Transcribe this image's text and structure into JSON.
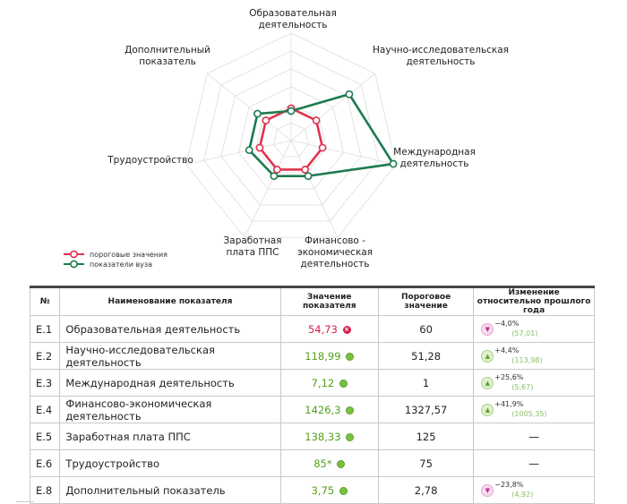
{
  "chart_data": {
    "type": "radar",
    "axes": [
      "Образовательная деятельность",
      "Научно-исследовательская деятельность",
      "Международная деятельность",
      "Финансово-экономическая деятельность",
      "Заработная плата ППС",
      "Трудоустройство",
      "Дополнительный показатель"
    ],
    "axis_labels": [
      [
        "Образовательная",
        "деятельность"
      ],
      [
        "Научно-исследовательская",
        "деятельность"
      ],
      [
        "Международная",
        "деятельность"
      ],
      [
        "Финансово -",
        "экономическая",
        "деятельность"
      ],
      [
        "Заработная",
        "плата ППС"
      ],
      [
        "Трудоустройство"
      ],
      [
        "Дополнительный",
        "показатель"
      ]
    ],
    "rmax": 6,
    "series": [
      {
        "name": "пороговые значения",
        "color": "#e0334f",
        "values": [
          1.8,
          1.8,
          1.8,
          1.8,
          1.8,
          1.8,
          1.8
        ]
      },
      {
        "name": "показатели вуза",
        "color": "#1e7b4f",
        "values": [
          1.65,
          4.15,
          5.85,
          2.2,
          2.2,
          2.4,
          2.4
        ]
      }
    ]
  },
  "legend": {
    "threshold": "пороговые значения",
    "university": "показатели вуза"
  },
  "table": {
    "headers": {
      "num": "№",
      "name": "Наименование показателя",
      "value": "Значение показателя",
      "threshold": "Пороговое значение",
      "change": "Изменение относительно прошлого года"
    },
    "rows": [
      {
        "code": "E.1",
        "name": "Образовательная деятельность",
        "value": "54,73",
        "status": "bad",
        "status_icon": "×",
        "threshold": "60",
        "change_dir": "down",
        "change_arrow": "▼",
        "change_pct": "−4,0%",
        "prev": "(57,01)",
        "dash": ""
      },
      {
        "code": "E.2",
        "name": "Научно-исследовательская деятельность",
        "value": "118,99",
        "status": "ok",
        "status_icon": "",
        "threshold": "51,28",
        "change_dir": "up",
        "change_arrow": "▲",
        "change_pct": "+4,4%",
        "prev": "(113,98)",
        "dash": ""
      },
      {
        "code": "E.3",
        "name": "Международная деятельность",
        "value": "7,12",
        "status": "ok",
        "status_icon": "",
        "threshold": "1",
        "change_dir": "up",
        "change_arrow": "▲",
        "change_pct": "+25,6%",
        "prev": "(5,67)",
        "dash": ""
      },
      {
        "code": "E.4",
        "name": "Финансово-экономическая деятельность",
        "value": "1426,3",
        "status": "ok",
        "status_icon": "",
        "threshold": "1327,57",
        "change_dir": "up",
        "change_arrow": "▲",
        "change_pct": "+41,9%",
        "prev": "(1005,35)",
        "dash": ""
      },
      {
        "code": "E.5",
        "name": "Заработная плата ППС",
        "value": "138,33",
        "status": "ok",
        "status_icon": "",
        "threshold": "125",
        "change_dir": "none",
        "change_arrow": "",
        "change_pct": "",
        "prev": "",
        "dash": "—"
      },
      {
        "code": "E.6",
        "name": "Трудоустройство",
        "value": "85*",
        "status": "ok",
        "status_icon": "",
        "threshold": "75",
        "change_dir": "none",
        "change_arrow": "",
        "change_pct": "",
        "prev": "",
        "dash": "—"
      },
      {
        "code": "E.8",
        "name": "Дополнительный показатель",
        "value": "3,75",
        "status": "ok",
        "status_icon": "",
        "threshold": "2,78",
        "change_dir": "down",
        "change_arrow": "▼",
        "change_pct": "−23,8%",
        "prev": "(4,92)",
        "dash": ""
      }
    ]
  }
}
